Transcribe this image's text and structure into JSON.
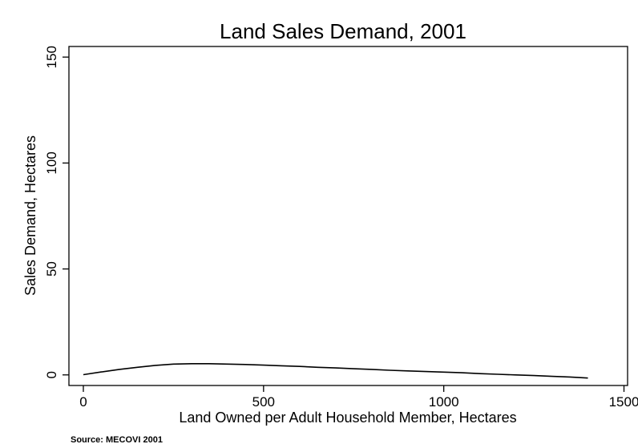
{
  "chart_data": {
    "type": "line",
    "title": "Land Sales Demand, 2001",
    "xlabel": "Land Owned per Adult Household Member, Hectares",
    "ylabel": "Sales Demand, Hectares",
    "xlim": [
      -40,
      1510
    ],
    "ylim": [
      -5,
      155
    ],
    "xticks": [
      0,
      500,
      1000,
      1500
    ],
    "yticks": [
      0,
      50,
      100,
      150
    ],
    "grid": false,
    "legend": "none",
    "line_color": "#000000",
    "series": [
      {
        "x": [
          0,
          50,
          100,
          150,
          200,
          250,
          300,
          350,
          400,
          450,
          500,
          550,
          600,
          650,
          700,
          750,
          800,
          850,
          900,
          950,
          1000,
          1050,
          1100,
          1150,
          1200,
          1250,
          1300,
          1350,
          1400
        ],
        "values": [
          0.1,
          1.4,
          2.6,
          3.6,
          4.5,
          5.1,
          5.3,
          5.3,
          5.1,
          4.9,
          4.6,
          4.3,
          4.0,
          3.6,
          3.3,
          2.9,
          2.6,
          2.2,
          1.9,
          1.6,
          1.3,
          1.0,
          0.6,
          0.3,
          0.0,
          -0.3,
          -0.7,
          -1.0,
          -1.5
        ]
      }
    ]
  },
  "source_note": "Source: MECOVI 2001"
}
